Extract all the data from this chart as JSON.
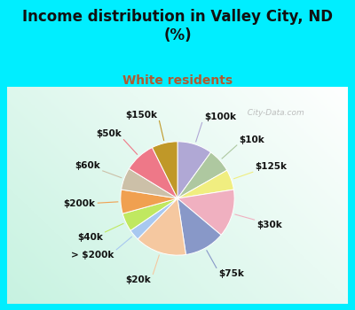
{
  "title": "Income distribution in Valley City, ND\n(%)",
  "subtitle": "White residents",
  "title_color": "#111111",
  "subtitle_color": "#b05a30",
  "background_color": "#00eeff",
  "chart_bg_color": "#d4ede3",
  "watermark": "  City-Data.com",
  "labels": [
    "$100k",
    "$10k",
    "$125k",
    "$30k",
    "$75k",
    "$20k",
    "> $200k",
    "$40k",
    "$200k",
    "$60k",
    "$50k",
    "$150k"
  ],
  "values": [
    9.5,
    6.5,
    5.5,
    13.0,
    11.0,
    14.0,
    3.0,
    5.0,
    6.5,
    6.0,
    8.5,
    7.0
  ],
  "colors": [
    "#b0a8d5",
    "#aec8a0",
    "#f0ee80",
    "#f0b0c0",
    "#8898c8",
    "#f5c8a0",
    "#a8c8f0",
    "#c0e860",
    "#f0a050",
    "#ccc0a8",
    "#ee7888",
    "#c09828"
  ],
  "label_fontsize": 7.5,
  "title_fontsize": 12,
  "subtitle_fontsize": 10,
  "startangle": 90,
  "line_colors": [
    "#b0a8d5",
    "#aec8a0",
    "#f0ee80",
    "#f0b0c0",
    "#8898c8",
    "#f5c8a0",
    "#a8c8f0",
    "#c0e860",
    "#f0a050",
    "#ccc0a8",
    "#ee7888",
    "#c09828"
  ]
}
